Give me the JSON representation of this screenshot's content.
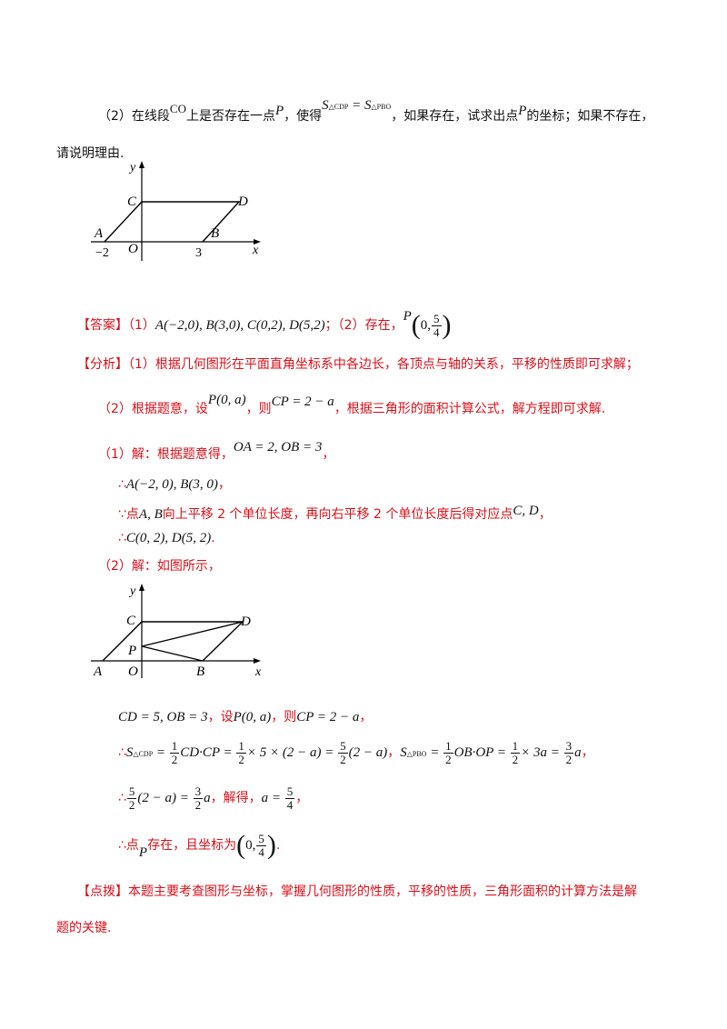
{
  "q2": {
    "part1": "（2）在线段",
    "co": "CO",
    "part2": "上是否存在一点",
    "p": "P",
    "part3": "，使得",
    "eq_s1": "S",
    "eq_sub1": "△CDP",
    "eq_mid": " = S",
    "eq_sub2": "△PBO",
    "part4": "，如果存在，试求出点",
    "p2": "P",
    "part5": "的坐标；如果不存在，",
    "line2": "请说明理由."
  },
  "fig1": {
    "y": "y",
    "x": "x",
    "C": "C",
    "D": "D",
    "A": "A",
    "B": "B",
    "O": "O",
    "neg2": "−2",
    "three": "3"
  },
  "answer": {
    "label": "【答案】",
    "p1": "（1）",
    "coords": "A(−2,0), B(3,0), C(0,2), D(5,2)",
    "p2": "；（2）存在，",
    "P": "P",
    "zero": "0,",
    "num": "5",
    "den": "4"
  },
  "analysis": {
    "label": "【分析】",
    "text1": "（1）根据几何图形在平面直角坐标系中各边长，各顶点与轴的关系，平移的性质即可求解；",
    "text2a": "（2）根据题意，设",
    "p0a": "P(0, a)",
    "text2b": "，则",
    "cp": "CP = 2 − a",
    "text2c": "，根据三角形的面积计算公式，解方程即可求解."
  },
  "sol1": {
    "head": "（1）解：根据题意得，",
    "oa": "OA = 2, OB = 3",
    "comma": "，",
    "l1_sym": "∴",
    "l1": "A(−2, 0), B(3, 0)",
    "l1_end": "，",
    "l2_sym": "∵",
    "l2a": "点",
    "l2ab": "A, B",
    "l2b": "向上平移 2 个单位长度，再向右平移 2 个单位长度后得对应点",
    "l2cd": "C, D",
    "l2end": "，",
    "l3_sym": "∴",
    "l3": "C(0, 2), D(5, 2)",
    "l3end": "."
  },
  "sol2": {
    "head": "（2）解：如图所示，",
    "line1a": "CD = 5, OB = 3",
    "line1b": "，设",
    "line1c": "P(0, a)",
    "line1d": "，则",
    "line1e": "CP = 2 − a",
    "line1f": "，",
    "line2_sym": "∴",
    "s": "S",
    "sub_cdp": "△CDP",
    "eq1": "=",
    "half_n": "1",
    "half_d": "2",
    "cdcp": "CD·CP =",
    "x5": "× 5 × (2 − a) =",
    "f52n": "5",
    "f52d": "2",
    "tail1": "(2 − a)",
    "sep": "，",
    "sub_pbo": "△PBO",
    "obop": "OB·OP =",
    "x3a": "× 3a =",
    "f32n": "3",
    "f32d": "2",
    "a_end": "a",
    "line2end": "，",
    "line3_sym": "∴",
    "l3_mid": "(2 − a) =",
    "l3_a": "a",
    "l3_text": "，解得，",
    "l3_aeq": "a =",
    "f54n": "5",
    "f54d": "4",
    "l3_end": "，",
    "line4_sym": "∴",
    "l4a": "点",
    "l4p": "P",
    "l4b": "存在，且坐标为",
    "l4_zero": "0,",
    "l4_end": "."
  },
  "fig2": {
    "y": "y",
    "x": "x",
    "C": "C",
    "D": "D",
    "A": "A",
    "B": "B",
    "O": "O",
    "P": "P"
  },
  "tip": {
    "label": "【点拨】",
    "text1": "本题主要考查图形与坐标，掌握几何图形的性质，平移的性质，三角形面积的计算方法是解",
    "text2": "题的关键."
  }
}
